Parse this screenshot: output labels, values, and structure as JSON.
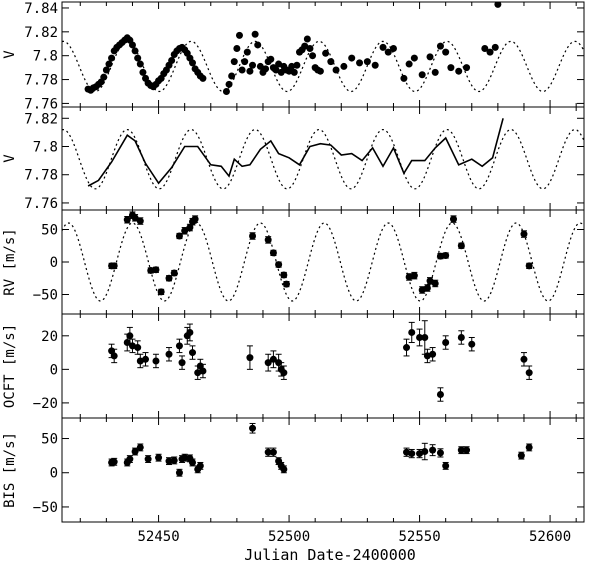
{
  "figure": {
    "xlabel": "Julian Date-2400000",
    "x_ticks": [
      52450,
      52500,
      52550,
      52600
    ],
    "xlim": [
      52413,
      52613
    ]
  },
  "chart_data": [
    {
      "type": "scatter",
      "panel": "photometry",
      "ylabel": "V",
      "ylim": [
        7.757,
        7.845
      ],
      "y_ticks": [
        7.76,
        7.78,
        7.8,
        7.82,
        7.84
      ],
      "y_tick_labels": [
        "7.76",
        "7.78",
        "7.8",
        "7.82",
        "7.84"
      ],
      "model": {
        "style": "dotted",
        "kind": "sine",
        "period": 24.5,
        "t_peak": 52438,
        "mean": 7.791,
        "amplitude": 0.021
      },
      "x": [
        52423,
        52424,
        52425,
        52426,
        52427,
        52428,
        52429,
        52430,
        52431,
        52432,
        52433,
        52434,
        52435,
        52436,
        52437,
        52438,
        52439,
        52440,
        52441,
        52442,
        52443,
        52444,
        52445,
        52446,
        52447,
        52448,
        52449,
        52450,
        52451,
        52452,
        52453,
        52454,
        52455,
        52456,
        52457,
        52458,
        52459,
        52460,
        52461,
        52462,
        52463,
        52464,
        52465,
        52466,
        52467,
        52476,
        52477,
        52478,
        52479,
        52480,
        52481,
        52482,
        52483,
        52484,
        52485,
        52486,
        52487,
        52488,
        52489,
        52490,
        52491,
        52492,
        52493,
        52494,
        52495,
        52496,
        52497,
        52498,
        52499,
        52500,
        52501,
        52502,
        52503,
        52504,
        52505,
        52506,
        52507,
        52508,
        52509,
        52510,
        52511,
        52512,
        52514,
        52516,
        52518,
        52521,
        52524,
        52527,
        52530,
        52533,
        52536,
        52538,
        52540,
        52544,
        52546,
        52548,
        52551,
        52554,
        52556,
        52558,
        52560,
        52562,
        52565,
        52568,
        52575,
        52577,
        52579,
        52580
      ],
      "y": [
        7.772,
        7.771,
        7.773,
        7.774,
        7.776,
        7.778,
        7.782,
        7.788,
        7.793,
        7.798,
        7.804,
        7.807,
        7.809,
        7.811,
        7.813,
        7.815,
        7.813,
        7.809,
        7.804,
        7.798,
        7.793,
        7.786,
        7.781,
        7.777,
        7.775,
        7.774,
        7.776,
        7.779,
        7.781,
        7.785,
        7.788,
        7.792,
        7.796,
        7.801,
        7.804,
        7.806,
        7.807,
        7.805,
        7.802,
        7.798,
        7.794,
        7.789,
        7.786,
        7.783,
        7.781,
        7.77,
        7.776,
        7.783,
        7.795,
        7.806,
        7.817,
        7.788,
        7.795,
        7.803,
        7.787,
        7.792,
        7.818,
        7.809,
        7.791,
        7.786,
        7.789,
        7.795,
        7.797,
        7.79,
        7.788,
        7.793,
        7.786,
        7.791,
        7.788,
        7.787,
        7.791,
        7.786,
        7.792,
        7.803,
        7.805,
        7.808,
        7.814,
        7.806,
        7.8,
        7.79,
        7.788,
        7.787,
        7.802,
        7.795,
        7.788,
        7.791,
        7.798,
        7.794,
        7.795,
        7.792,
        7.807,
        7.803,
        7.806,
        7.781,
        7.793,
        7.798,
        7.784,
        7.799,
        7.786,
        7.808,
        7.803,
        7.79,
        7.787,
        7.79,
        7.806,
        7.803,
        7.807,
        7.843
      ]
    },
    {
      "type": "line",
      "panel": "photometry-binned",
      "ylabel": "V",
      "ylim": [
        7.755,
        7.828
      ],
      "y_ticks": [
        7.76,
        7.78,
        7.8,
        7.82
      ],
      "y_tick_labels": [
        "7.76",
        "7.78",
        "7.8",
        "7.82"
      ],
      "model": {
        "style": "dotted",
        "kind": "sine",
        "period": 24.5,
        "t_peak": 52438,
        "mean": 7.791,
        "amplitude": 0.021
      },
      "x": [
        52423,
        52427,
        52432,
        52438,
        52441,
        52445,
        52450,
        52455,
        52460,
        52465,
        52470,
        52474,
        52477,
        52479,
        52482,
        52485,
        52489,
        52493,
        52496,
        52500,
        52504,
        52508,
        52512,
        52516,
        52520,
        52524,
        52528,
        52532,
        52536,
        52540,
        52544,
        52547,
        52552,
        52556,
        52560,
        52565,
        52570,
        52574,
        52578,
        52582
      ],
      "y": [
        7.772,
        7.776,
        7.789,
        7.808,
        7.804,
        7.788,
        7.774,
        7.785,
        7.8,
        7.8,
        7.787,
        7.786,
        7.779,
        7.791,
        7.786,
        7.787,
        7.798,
        7.804,
        7.795,
        7.792,
        7.787,
        7.8,
        7.802,
        7.801,
        7.794,
        7.795,
        7.79,
        7.799,
        7.786,
        7.799,
        7.781,
        7.79,
        7.79,
        7.799,
        7.806,
        7.787,
        7.791,
        7.786,
        7.792,
        7.82
      ]
    },
    {
      "type": "scatter",
      "panel": "radial-velocity",
      "ylabel": "RV [m/s]",
      "ylim": [
        -80,
        80
      ],
      "y_ticks": [
        -50,
        0,
        50
      ],
      "y_tick_labels": [
        "−50",
        "0",
        "50"
      ],
      "model": {
        "style": "dotted",
        "kind": "sine",
        "period": 24.5,
        "t_peak": 52440,
        "mean": 0,
        "amplitude": 60
      },
      "x": [
        52432,
        52433,
        52438,
        52440,
        52441,
        52443,
        52447,
        52449,
        52451,
        52454,
        52456,
        52458,
        52460,
        52462,
        52463,
        52464,
        52486,
        52492,
        52494,
        52496,
        52498,
        52499,
        52546,
        52548,
        52551,
        52553,
        52554,
        52556,
        52558,
        52560,
        52563,
        52566,
        52590,
        52592
      ],
      "y": [
        -6,
        -6,
        65,
        72,
        68,
        63,
        -13,
        -12,
        -46,
        -25,
        -17,
        40,
        48,
        53,
        62,
        66,
        40,
        34,
        14,
        -4,
        -20,
        -34,
        -23,
        -21,
        -43,
        -40,
        -29,
        -33,
        9,
        10,
        66,
        25,
        43,
        -6
      ],
      "err": [
        4,
        4,
        5,
        5,
        5,
        5,
        4,
        4,
        4,
        4,
        4,
        4,
        5,
        5,
        5,
        5,
        5,
        5,
        4,
        4,
        4,
        4,
        5,
        5,
        5,
        5,
        5,
        5,
        4,
        4,
        5,
        4,
        5,
        4
      ]
    },
    {
      "type": "scatter",
      "panel": "oCFT",
      "ylabel": "OCFT [m/s]",
      "ylim": [
        -29,
        33
      ],
      "y_ticks": [
        -20,
        0,
        20
      ],
      "y_tick_labels": [
        "−20",
        "0",
        "20"
      ],
      "x": [
        52432,
        52433,
        52438,
        52439,
        52440,
        52442,
        52443,
        52445,
        52449,
        52454,
        52458,
        52459,
        52461,
        52462,
        52463,
        52465,
        52466,
        52467,
        52485,
        52492,
        52494,
        52496,
        52497,
        52498,
        52545,
        52547,
        52550,
        52552,
        52553,
        52555,
        52558,
        52560,
        52566,
        52570,
        52590,
        52592
      ],
      "y": [
        11,
        8,
        16,
        20,
        14,
        13,
        5,
        6,
        5,
        9,
        14,
        4,
        20,
        22,
        10,
        -2,
        2,
        -1,
        7,
        4,
        6,
        4,
        0,
        -2,
        13,
        22,
        19,
        19,
        8,
        9,
        -15,
        16,
        19,
        15,
        6,
        -2
      ],
      "err": [
        4,
        4,
        5,
        5,
        4,
        4,
        4,
        4,
        4,
        4,
        4,
        4,
        5,
        5,
        4,
        4,
        4,
        4,
        7,
        5,
        5,
        5,
        4,
        4,
        5,
        6,
        5,
        10,
        4,
        4,
        4,
        4,
        4,
        4,
        4,
        4
      ]
    },
    {
      "type": "scatter",
      "panel": "bisector",
      "ylabel": "BIS [m/s]",
      "ylim": [
        -72,
        80
      ],
      "y_ticks": [
        -50,
        0,
        50
      ],
      "y_tick_labels": [
        "−50",
        "0",
        "50"
      ],
      "x": [
        52432,
        52433,
        52438,
        52439,
        52441,
        52443,
        52446,
        52450,
        52454,
        52456,
        52458,
        52459,
        52460,
        52462,
        52463,
        52465,
        52466,
        52486,
        52492,
        52494,
        52496,
        52497,
        52498,
        52545,
        52547,
        52550,
        52552,
        52555,
        52558,
        52560,
        52566,
        52568,
        52589,
        52592
      ],
      "y": [
        15,
        16,
        15,
        20,
        31,
        37,
        20,
        22,
        17,
        18,
        0,
        20,
        22,
        21,
        15,
        5,
        10,
        65,
        30,
        30,
        17,
        10,
        5,
        30,
        28,
        28,
        31,
        33,
        29,
        10,
        33,
        33,
        25,
        37
      ],
      "err": [
        5,
        5,
        5,
        5,
        5,
        5,
        5,
        5,
        5,
        5,
        5,
        5,
        5,
        5,
        5,
        5,
        5,
        7,
        6,
        6,
        5,
        5,
        5,
        6,
        6,
        6,
        12,
        8,
        6,
        5,
        5,
        5,
        5,
        5
      ]
    }
  ]
}
